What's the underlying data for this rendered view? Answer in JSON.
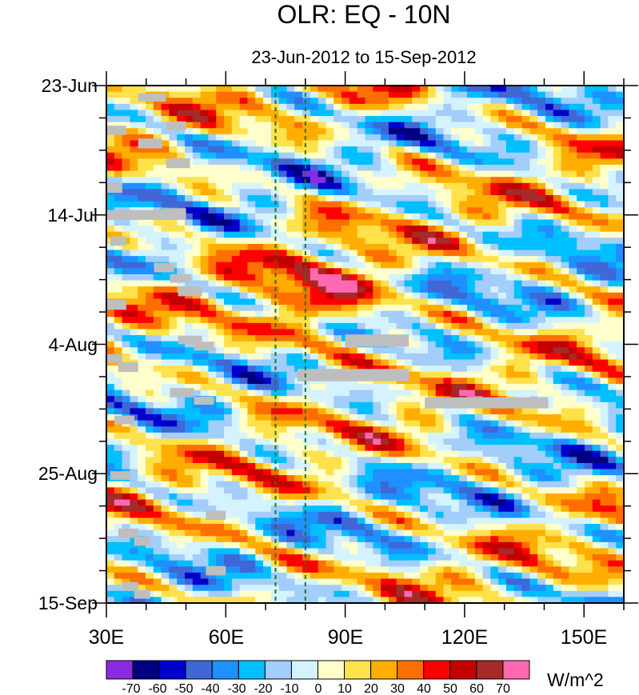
{
  "chart_data": {
    "type": "heatmap",
    "title": "OLR: EQ - 10N",
    "subtitle": "23-Jun-2012 to 15-Sep-2012",
    "x_axis": {
      "range": [
        30,
        160
      ],
      "unit": "degrees east longitude",
      "ticks": [
        30,
        60,
        90,
        120,
        150
      ],
      "tick_labels": [
        "30E",
        "60E",
        "90E",
        "120E",
        "150E"
      ]
    },
    "y_axis": {
      "range_days": [
        0,
        84
      ],
      "start_date": "23-Jun-2012",
      "end_date": "15-Sep-2012",
      "ticks_days": [
        0,
        21,
        42,
        63,
        84
      ],
      "tick_labels": [
        "23-Jun",
        "14-Jul",
        "4-Aug",
        "25-Aug",
        "15-Sep"
      ],
      "direction": "top-to-bottom"
    },
    "reference_lines_longitude": [
      72.5,
      80
    ],
    "colorbar": {
      "units": "W/m^2",
      "levels": [
        -70,
        -60,
        -50,
        -40,
        -30,
        -20,
        -10,
        0,
        10,
        20,
        30,
        40,
        50,
        60,
        70
      ],
      "level_labels": [
        "-70",
        "-60",
        "-50",
        "-40",
        "-30",
        "-20",
        "-10",
        "0",
        "10",
        "20",
        "30",
        "40",
        "50",
        "60",
        "70"
      ],
      "colors": [
        "#8a2be2",
        "#000080",
        "#0000cd",
        "#3f67d6",
        "#1e90ff",
        "#00bfff",
        "#a3cdfa",
        "#d4f3ff",
        "#ffffcc",
        "#ffe14c",
        "#ffae00",
        "#ff6f00",
        "#ff0000",
        "#c40000",
        "#a52a2a",
        "#ff69b4"
      ]
    },
    "missing_data_color": "#bebebe",
    "grid": false,
    "legend": "bottom"
  }
}
